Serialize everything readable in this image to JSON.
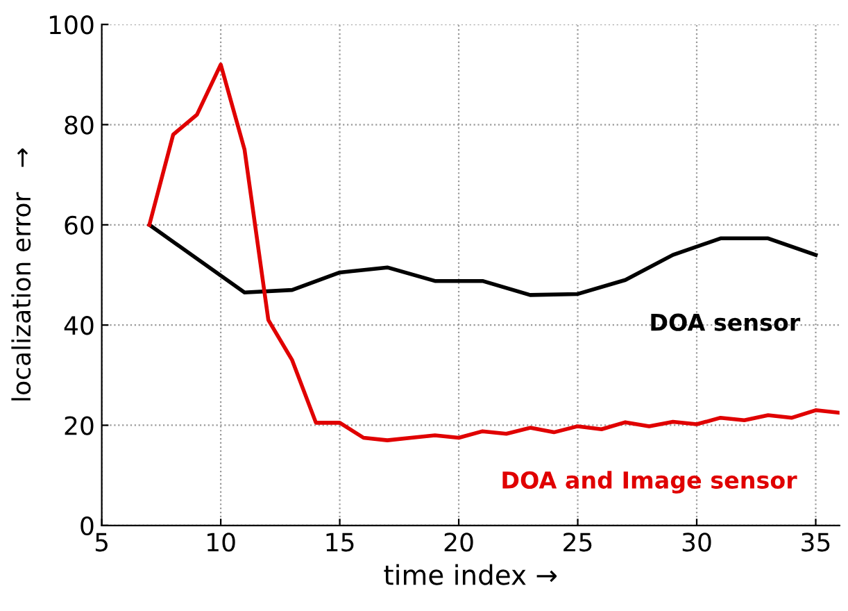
{
  "chart_data": {
    "type": "line",
    "xlabel": "time index →",
    "ylabel": "localization error   →",
    "xlim": [
      5,
      36
    ],
    "xticks": [
      5,
      10,
      15,
      20,
      25,
      30,
      35
    ],
    "ylim": [
      0,
      100
    ],
    "yticks": [
      0,
      20,
      40,
      60,
      80,
      100
    ],
    "grid": true,
    "line_style": "solid",
    "marker": "none",
    "legend": false,
    "series": [
      {
        "name": "DOA sensor",
        "color": "#000000",
        "x": [
          7,
          11,
          13,
          15,
          17,
          19,
          21,
          23,
          25,
          27,
          29,
          31,
          33,
          35
        ],
        "values": [
          60,
          46.5,
          47,
          50.5,
          51.5,
          48.8,
          48.8,
          46,
          46.2,
          49,
          54,
          57.3,
          57.3,
          54
        ]
      },
      {
        "name": "DOA and Image sensor",
        "color": "#e00000",
        "x": [
          7,
          8,
          9,
          10,
          11,
          12,
          13,
          14,
          15,
          16,
          17,
          18,
          19,
          20,
          21,
          22,
          23,
          24,
          25,
          26,
          27,
          28,
          29,
          30,
          31,
          32,
          33,
          34,
          35,
          36
        ],
        "values": [
          60,
          78,
          82,
          92,
          75,
          41,
          33,
          20.5,
          20.5,
          17.5,
          17,
          17.5,
          18,
          17.5,
          18.8,
          18.3,
          19.5,
          18.6,
          19.8,
          19.2,
          20.6,
          19.8,
          20.7,
          20.2,
          21.5,
          21,
          22,
          21.5,
          23,
          22.5
        ]
      }
    ]
  }
}
